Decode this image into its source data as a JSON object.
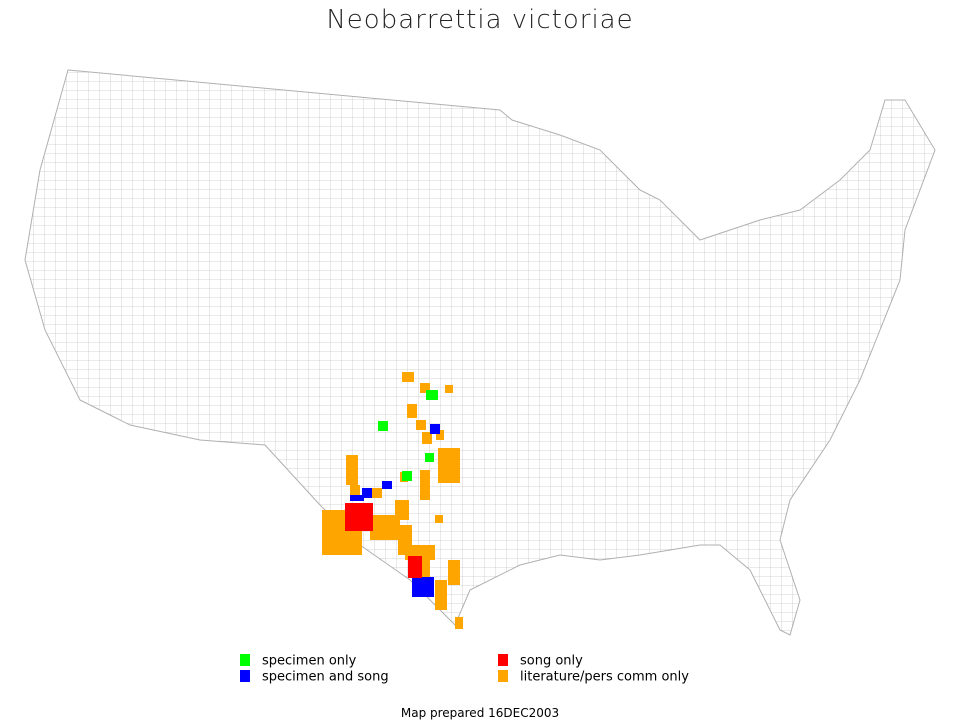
{
  "title": "Neobarrettia victoriae",
  "legend": [
    {
      "label": "specimen only",
      "color": "#00ff00"
    },
    {
      "label": "specimen and song",
      "color": "#0000ff"
    },
    {
      "label": "song only",
      "color": "#ff0000"
    },
    {
      "label": "literature/pers comm only",
      "color": "#ffa500"
    }
  ],
  "footer": "Map prepared 16DEC2003"
}
